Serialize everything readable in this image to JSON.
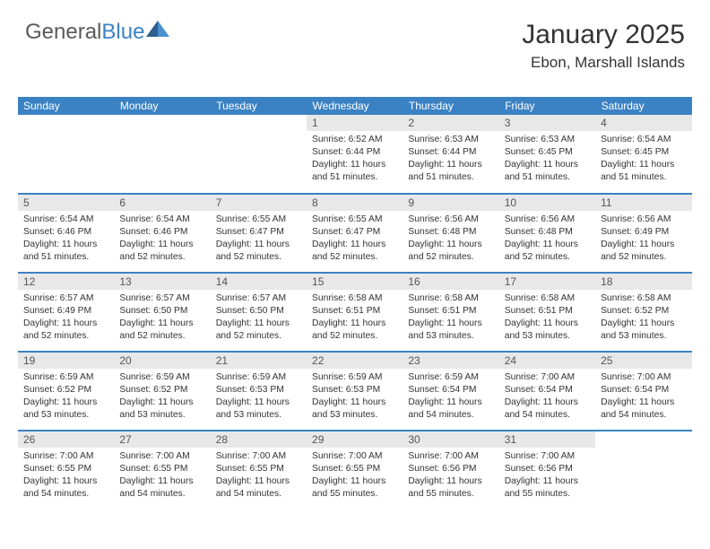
{
  "logo": {
    "text1": "General",
    "text2": "Blue",
    "color1": "#5a5a5a",
    "color2": "#3b82c4"
  },
  "header": {
    "title": "January 2025",
    "location": "Ebon, Marshall Islands"
  },
  "style": {
    "header_bg": "#3b82c4",
    "header_fg": "#ffffff",
    "daynum_bg": "#e8e8e8",
    "border_color": "#3b82c4",
    "body_font_size": 10.3,
    "title_font_size": 30,
    "location_font_size": 17
  },
  "weekdays": [
    "Sunday",
    "Monday",
    "Tuesday",
    "Wednesday",
    "Thursday",
    "Friday",
    "Saturday"
  ],
  "weeks": [
    [
      null,
      null,
      null,
      {
        "n": "1",
        "sr": "6:52 AM",
        "ss": "6:44 PM",
        "dl": "11 hours and 51 minutes."
      },
      {
        "n": "2",
        "sr": "6:53 AM",
        "ss": "6:44 PM",
        "dl": "11 hours and 51 minutes."
      },
      {
        "n": "3",
        "sr": "6:53 AM",
        "ss": "6:45 PM",
        "dl": "11 hours and 51 minutes."
      },
      {
        "n": "4",
        "sr": "6:54 AM",
        "ss": "6:45 PM",
        "dl": "11 hours and 51 minutes."
      }
    ],
    [
      {
        "n": "5",
        "sr": "6:54 AM",
        "ss": "6:46 PM",
        "dl": "11 hours and 51 minutes."
      },
      {
        "n": "6",
        "sr": "6:54 AM",
        "ss": "6:46 PM",
        "dl": "11 hours and 52 minutes."
      },
      {
        "n": "7",
        "sr": "6:55 AM",
        "ss": "6:47 PM",
        "dl": "11 hours and 52 minutes."
      },
      {
        "n": "8",
        "sr": "6:55 AM",
        "ss": "6:47 PM",
        "dl": "11 hours and 52 minutes."
      },
      {
        "n": "9",
        "sr": "6:56 AM",
        "ss": "6:48 PM",
        "dl": "11 hours and 52 minutes."
      },
      {
        "n": "10",
        "sr": "6:56 AM",
        "ss": "6:48 PM",
        "dl": "11 hours and 52 minutes."
      },
      {
        "n": "11",
        "sr": "6:56 AM",
        "ss": "6:49 PM",
        "dl": "11 hours and 52 minutes."
      }
    ],
    [
      {
        "n": "12",
        "sr": "6:57 AM",
        "ss": "6:49 PM",
        "dl": "11 hours and 52 minutes."
      },
      {
        "n": "13",
        "sr": "6:57 AM",
        "ss": "6:50 PM",
        "dl": "11 hours and 52 minutes."
      },
      {
        "n": "14",
        "sr": "6:57 AM",
        "ss": "6:50 PM",
        "dl": "11 hours and 52 minutes."
      },
      {
        "n": "15",
        "sr": "6:58 AM",
        "ss": "6:51 PM",
        "dl": "11 hours and 52 minutes."
      },
      {
        "n": "16",
        "sr": "6:58 AM",
        "ss": "6:51 PM",
        "dl": "11 hours and 53 minutes."
      },
      {
        "n": "17",
        "sr": "6:58 AM",
        "ss": "6:51 PM",
        "dl": "11 hours and 53 minutes."
      },
      {
        "n": "18",
        "sr": "6:58 AM",
        "ss": "6:52 PM",
        "dl": "11 hours and 53 minutes."
      }
    ],
    [
      {
        "n": "19",
        "sr": "6:59 AM",
        "ss": "6:52 PM",
        "dl": "11 hours and 53 minutes."
      },
      {
        "n": "20",
        "sr": "6:59 AM",
        "ss": "6:52 PM",
        "dl": "11 hours and 53 minutes."
      },
      {
        "n": "21",
        "sr": "6:59 AM",
        "ss": "6:53 PM",
        "dl": "11 hours and 53 minutes."
      },
      {
        "n": "22",
        "sr": "6:59 AM",
        "ss": "6:53 PM",
        "dl": "11 hours and 53 minutes."
      },
      {
        "n": "23",
        "sr": "6:59 AM",
        "ss": "6:54 PM",
        "dl": "11 hours and 54 minutes."
      },
      {
        "n": "24",
        "sr": "7:00 AM",
        "ss": "6:54 PM",
        "dl": "11 hours and 54 minutes."
      },
      {
        "n": "25",
        "sr": "7:00 AM",
        "ss": "6:54 PM",
        "dl": "11 hours and 54 minutes."
      }
    ],
    [
      {
        "n": "26",
        "sr": "7:00 AM",
        "ss": "6:55 PM",
        "dl": "11 hours and 54 minutes."
      },
      {
        "n": "27",
        "sr": "7:00 AM",
        "ss": "6:55 PM",
        "dl": "11 hours and 54 minutes."
      },
      {
        "n": "28",
        "sr": "7:00 AM",
        "ss": "6:55 PM",
        "dl": "11 hours and 54 minutes."
      },
      {
        "n": "29",
        "sr": "7:00 AM",
        "ss": "6:55 PM",
        "dl": "11 hours and 55 minutes."
      },
      {
        "n": "30",
        "sr": "7:00 AM",
        "ss": "6:56 PM",
        "dl": "11 hours and 55 minutes."
      },
      {
        "n": "31",
        "sr": "7:00 AM",
        "ss": "6:56 PM",
        "dl": "11 hours and 55 minutes."
      },
      null
    ]
  ],
  "labels": {
    "sunrise": "Sunrise:",
    "sunset": "Sunset:",
    "daylight": "Daylight:"
  }
}
